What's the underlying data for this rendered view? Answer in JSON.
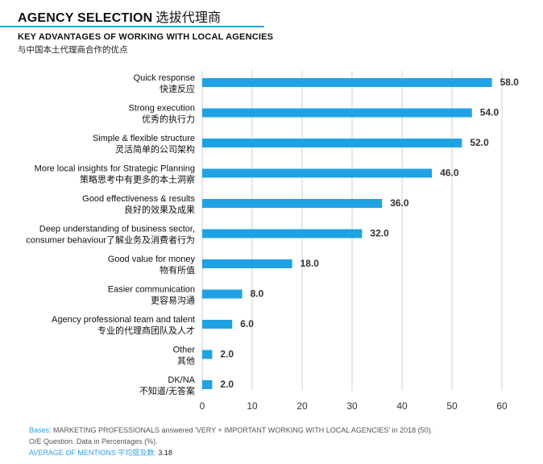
{
  "header": {
    "title_en": "AGENCY SELECTION",
    "title_cn": "选拔代理商",
    "subtitle_en": "KEY ADVANTAGES OF WORKING WITH LOCAL AGENCIES",
    "subtitle_cn": "与中国本土代理商合作的优点"
  },
  "colors": {
    "accent": "#2aa0df",
    "bar": "#1fa2e4",
    "grid": "#cfcfcf"
  },
  "chart_data": {
    "type": "bar",
    "orientation": "horizontal",
    "categories": [
      {
        "en": "Quick response",
        "cn": "快速反应"
      },
      {
        "en": "Strong execution",
        "cn": "优秀的执行力"
      },
      {
        "en": "Simple & flexible structure",
        "cn": "灵活简单的公司架构"
      },
      {
        "en": "More local insights for Strategic Planning",
        "cn": "策略思考中有更多的本土洞察"
      },
      {
        "en": "Good effectiveness & results",
        "cn": "良好的效果及成果"
      },
      {
        "en": "Deep understanding of business sector,",
        "cn": "consumer behaviour了解业务及消费者行为"
      },
      {
        "en": "Good value for money",
        "cn": "物有所值"
      },
      {
        "en": "Easier communication",
        "cn": "更容易沟通"
      },
      {
        "en": "Agency professional team  and talent",
        "cn": "专业的代理商团队及人才"
      },
      {
        "en": "Other",
        "cn": "其他"
      },
      {
        "en": "DK/NA",
        "cn": "不知道/无答案"
      }
    ],
    "values": [
      58.0,
      54.0,
      52.0,
      46.0,
      36.0,
      32.0,
      18.0,
      8.0,
      6.0,
      2.0,
      2.0
    ],
    "value_labels": [
      "58.0",
      "54.0",
      "52.0",
      "46.0",
      "36.0",
      "32.0",
      "18.0",
      "8.0",
      "6.0",
      "2.0",
      "2.0"
    ],
    "xlim": [
      0,
      60
    ],
    "xticks": [
      0,
      10,
      20,
      30,
      40,
      50,
      60
    ],
    "xtick_labels": [
      "0",
      "10",
      "20",
      "30",
      "40",
      "50",
      "60"
    ],
    "grid": true
  },
  "footer": {
    "bases_label": "Bases:",
    "bases_text": "MARKETING PROFESSIONALS answered 'VERY + IMPORTANT WORKING WITH LOCAL AGENCIES' in 2018 (50).",
    "question_note": "O/E Question. Data in Percentages (%).",
    "avg_label": "AVERAGE OF MENTIONS 平均提及数:",
    "avg_value": "3.18"
  }
}
